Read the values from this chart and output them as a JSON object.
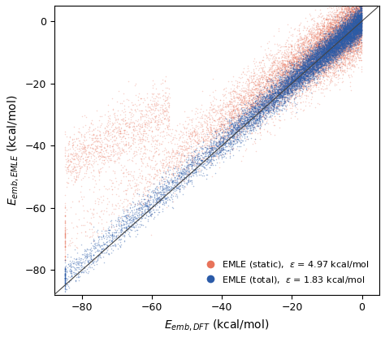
{
  "xlim": [
    -88,
    5
  ],
  "ylim": [
    -88,
    5
  ],
  "xlabel": "$E_{emb,DFT}$ (kcal/mol)",
  "ylabel": "$E_{emb,EMLE}$ (kcal/mol)",
  "color_static": "#E8735A",
  "color_total": "#2B5BA8",
  "label_static": "EMLE (static),  $\\varepsilon$ = 4.97 kcal/mol",
  "label_total": "EMLE (total),  $\\varepsilon$ = 1.83 kcal/mol",
  "xticks": [
    -80,
    -60,
    -40,
    -20,
    0
  ],
  "yticks": [
    -80,
    -60,
    -40,
    -20,
    0
  ],
  "n_points": 12000,
  "seed": 42,
  "diag_color": "#444444",
  "alpha_static": 0.3,
  "alpha_total": 0.4,
  "point_size": 1.2,
  "legend_marker_size": 8
}
